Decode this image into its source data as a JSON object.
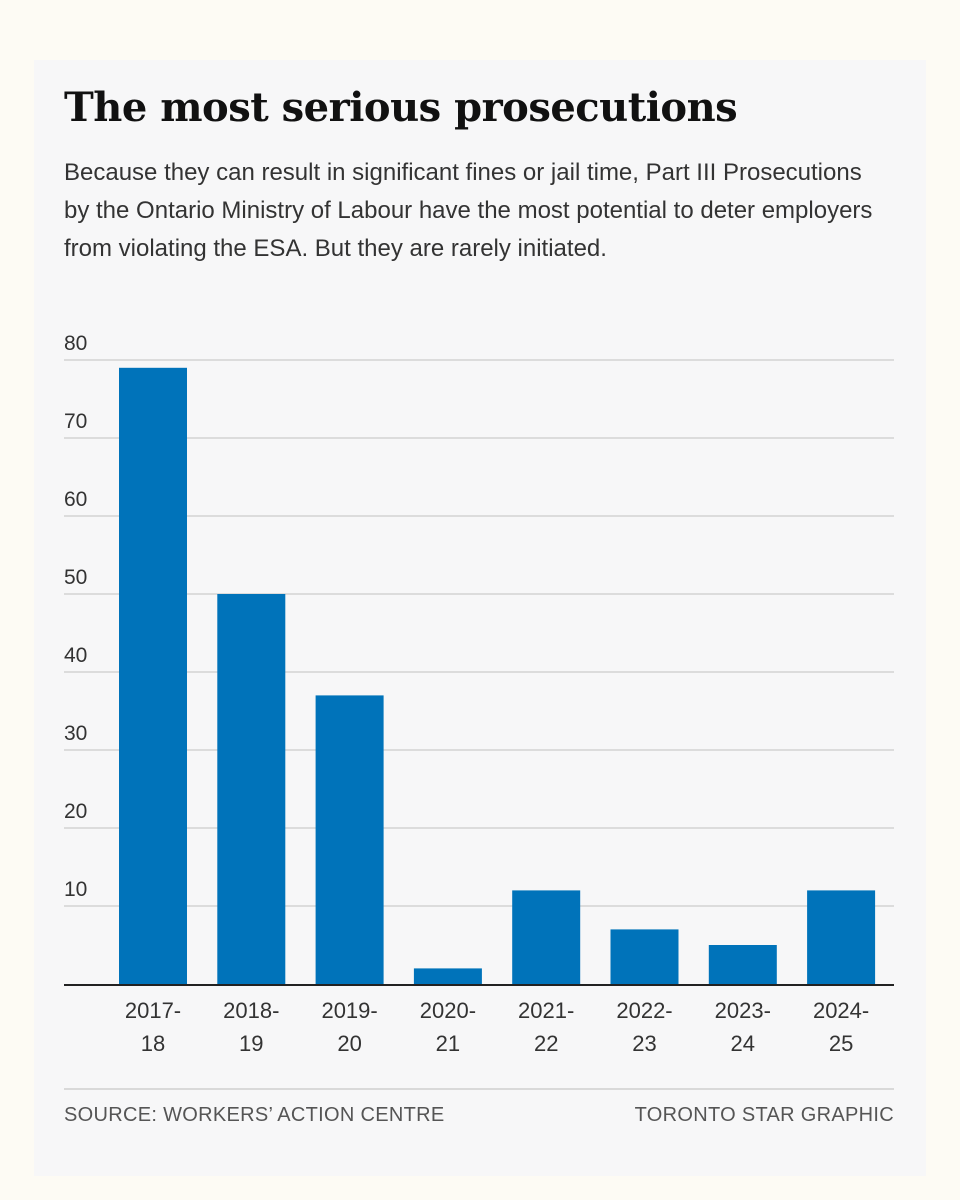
{
  "title": "The most serious prosecutions",
  "subtitle": "Because they can result in significant fines or jail time, Part III Prosecutions by the Ontario Ministry of Labour have the most potential to deter employers from violating the ESA. But they are rarely initiated.",
  "footer": {
    "source": "SOURCE: WORKERS’ ACTION CENTRE",
    "credit": "TORONTO STAR GRAPHIC"
  },
  "colors": {
    "bar": "#0073ba",
    "grid": "#dcdcdc",
    "axis": "#222222"
  },
  "chart_data": {
    "type": "bar",
    "title": "The most serious prosecutions",
    "xlabel": "",
    "ylabel": "",
    "categories": [
      [
        "2017-",
        "18"
      ],
      [
        "2018-",
        "19"
      ],
      [
        "2019-",
        "20"
      ],
      [
        "2020-",
        "21"
      ],
      [
        "2021-",
        "22"
      ],
      [
        "2022-",
        "23"
      ],
      [
        "2023-",
        "24"
      ],
      [
        "2024-",
        "25"
      ]
    ],
    "values": [
      79,
      50,
      37,
      2,
      12,
      7,
      5,
      12
    ],
    "yticks": [
      10,
      20,
      30,
      40,
      50,
      60,
      70,
      80
    ],
    "ylim": [
      0,
      80
    ],
    "grid": true,
    "legend": "none"
  }
}
